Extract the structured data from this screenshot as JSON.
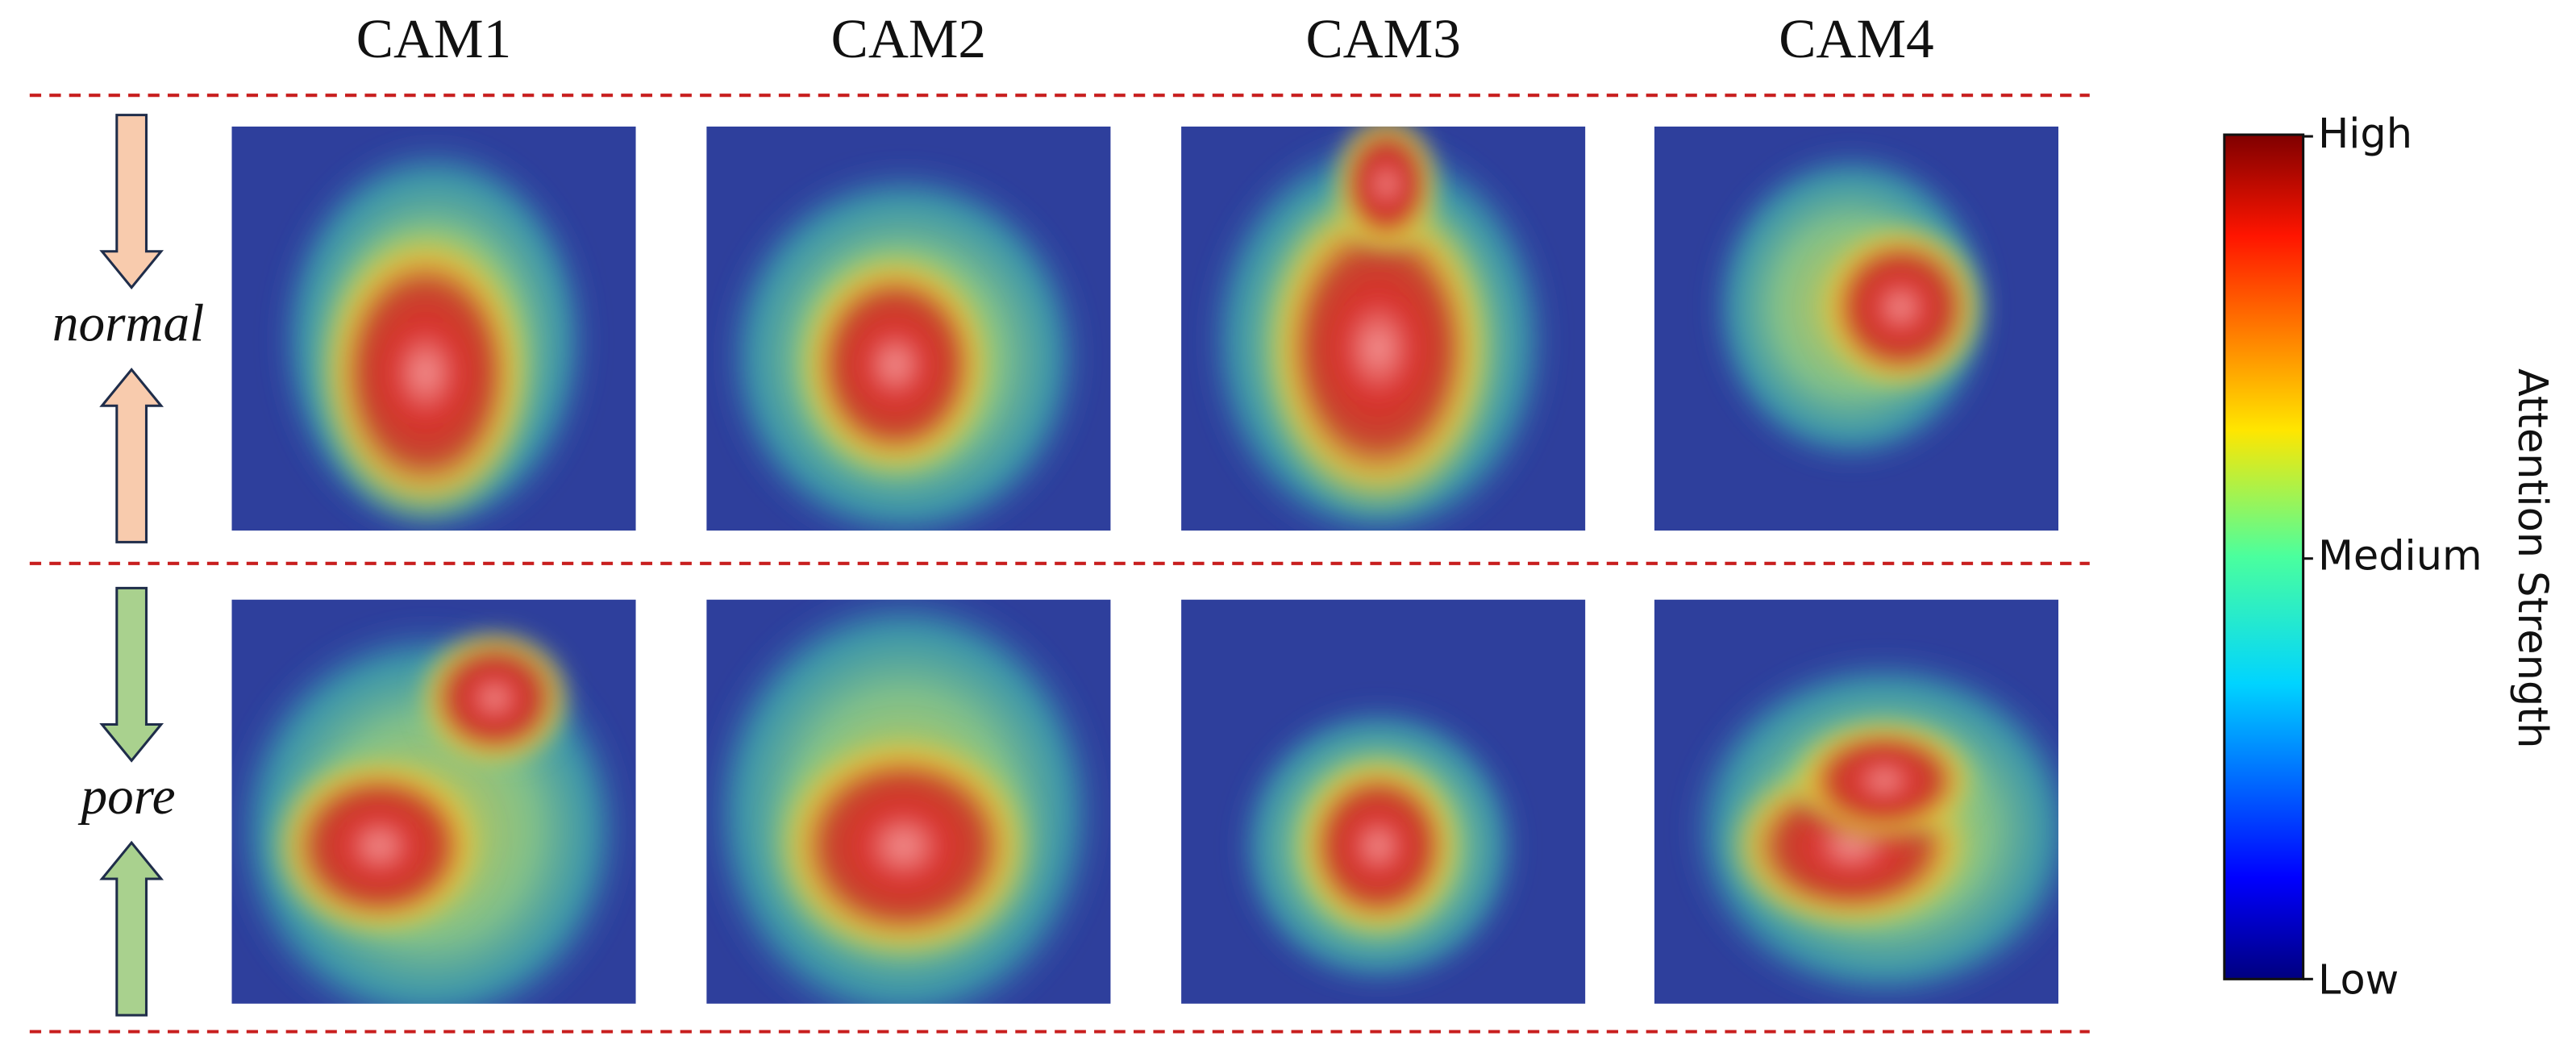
{
  "columns": [
    "CAM1",
    "CAM2",
    "CAM3",
    "CAM4"
  ],
  "rows": [
    "normal",
    "pore"
  ],
  "colorbar": {
    "ticks": [
      "High",
      "Medium",
      "Low"
    ],
    "label": "Attention Strength"
  }
}
